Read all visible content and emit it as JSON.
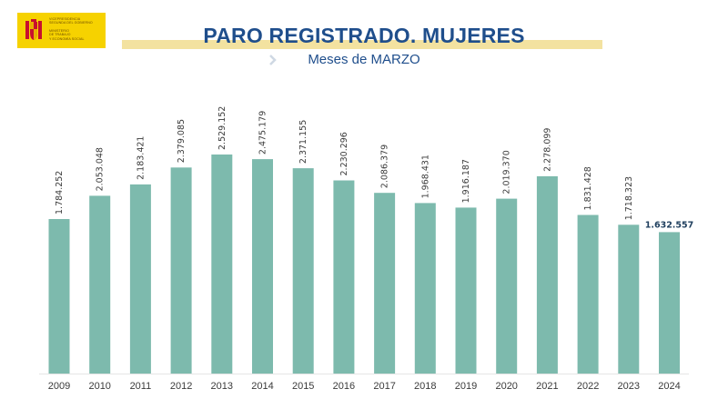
{
  "logo": {
    "line1": "VICEPRESIDENCIA",
    "line2": "SEGUNDA DEL GOBIERNO",
    "line3": "MINISTERIO",
    "line4": "DE TRABAJO",
    "line5": "Y ECONOMÍA SOCIAL"
  },
  "header": {
    "title": "PARO REGISTRADO. MUJERES",
    "subtitle": "Meses de MARZO"
  },
  "colors": {
    "bar": "#7dbaad",
    "title": "#1f4e8c",
    "title_bar": "#f3e2a0",
    "logo_bg": "#f6d200"
  },
  "chart_data": {
    "type": "bar",
    "title": "PARO REGISTRADO. MUJERES",
    "subtitle": "Meses de MARZO",
    "categories": [
      "2009",
      "2010",
      "2011",
      "2012",
      "2013",
      "2014",
      "2015",
      "2016",
      "2017",
      "2018",
      "2019",
      "2020",
      "2021",
      "2022",
      "2023",
      "2024"
    ],
    "values": [
      1784252,
      2053048,
      2183421,
      2379085,
      2529152,
      2475179,
      2371155,
      2230296,
      2086379,
      1968431,
      1916187,
      2019370,
      2278099,
      1831428,
      1718323,
      1632557
    ],
    "labels": [
      "1.784.252",
      "2.053.048",
      "2.183.421",
      "2.379.085",
      "2.529.152",
      "2.475.179",
      "2.371.155",
      "2.230.296",
      "2.086.379",
      "1.968.431",
      "1.916.187",
      "2.019.370",
      "2.278.099",
      "1.831.428",
      "1.718.323",
      "1.632.557"
    ],
    "xlabel": "",
    "ylabel": "",
    "ylim": [
      0,
      2529152
    ],
    "grid": false,
    "legend": "none"
  }
}
